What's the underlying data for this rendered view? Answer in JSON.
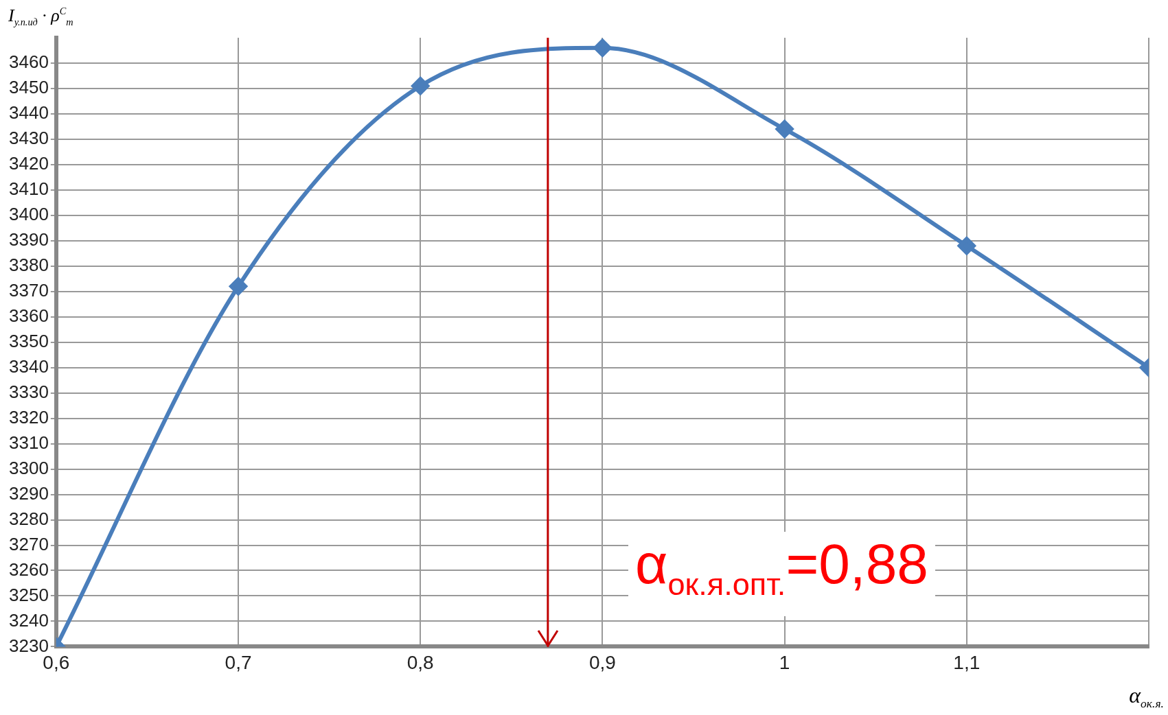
{
  "chart_data": {
    "type": "line",
    "xlabel": "α$_{ок.я.}$",
    "ylabel": "I$_{у.п.ид}$ · ρ$^{C}$$_{m}$",
    "x": [
      0.6,
      0.7,
      0.8,
      0.9,
      1.0,
      1.1,
      1.2
    ],
    "series": [
      {
        "color": "#4a7ebb",
        "values": [
          3230,
          3372,
          3451,
          3466,
          3434,
          3388,
          3340
        ]
      }
    ],
    "xlim": [
      0.6,
      1.2
    ],
    "xticks": [
      {
        "value": 0.6,
        "label": "0,6"
      },
      {
        "value": 0.7,
        "label": "0,7"
      },
      {
        "value": 0.8,
        "label": "0,8"
      },
      {
        "value": 0.9,
        "label": "0,9"
      },
      {
        "value": 1,
        "label": "1"
      },
      {
        "value": 1.1,
        "label": "1,1"
      },
      {
        "value": 1.2,
        "label": null
      }
    ],
    "ylim": [
      3230,
      3470
    ],
    "yticks": [
      3230,
      3240,
      3250,
      3260,
      3270,
      3280,
      3290,
      3300,
      3310,
      3320,
      3330,
      3340,
      3350,
      3360,
      3370,
      3380,
      3390,
      3400,
      3410,
      3420,
      3430,
      3440,
      3450,
      3460
    ],
    "ref_lines": [
      {
        "axis": "x",
        "value": 0.87,
        "color": "#c00000"
      }
    ],
    "annotations": [
      "α$_{ок.я.опт.}$=0,88"
    ],
    "grid": true,
    "legend": false,
    "marker": "diamond",
    "line_style": "solid"
  }
}
